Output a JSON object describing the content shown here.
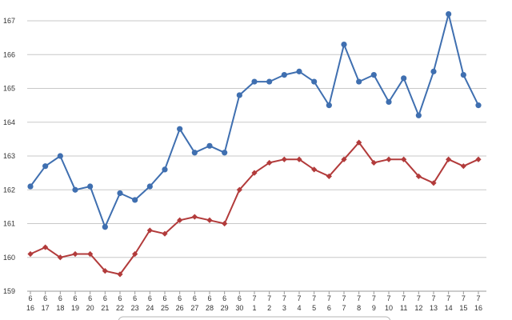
{
  "chart_data": {
    "type": "line",
    "title": "",
    "xlabel": "",
    "ylabel": "",
    "grid": true,
    "ylim": [
      159,
      167
    ],
    "yticks": [
      159,
      160,
      161,
      162,
      163,
      164,
      165,
      166,
      167
    ],
    "categories": [
      [
        "6",
        "16"
      ],
      [
        "6",
        "17"
      ],
      [
        "6",
        "18"
      ],
      [
        "6",
        "19"
      ],
      [
        "6",
        "20"
      ],
      [
        "6",
        "21"
      ],
      [
        "6",
        "22"
      ],
      [
        "6",
        "23"
      ],
      [
        "6",
        "24"
      ],
      [
        "6",
        "25"
      ],
      [
        "6",
        "26"
      ],
      [
        "6",
        "27"
      ],
      [
        "6",
        "28"
      ],
      [
        "6",
        "29"
      ],
      [
        "6",
        "30"
      ],
      [
        "7",
        "1"
      ],
      [
        "7",
        "2"
      ],
      [
        "7",
        "3"
      ],
      [
        "7",
        "4"
      ],
      [
        "7",
        "5"
      ],
      [
        "7",
        "6"
      ],
      [
        "7",
        "7"
      ],
      [
        "7",
        "8"
      ],
      [
        "7",
        "9"
      ],
      [
        "7",
        "10"
      ],
      [
        "7",
        "11"
      ],
      [
        "7",
        "12"
      ],
      [
        "7",
        "13"
      ],
      [
        "7",
        "14"
      ],
      [
        "7",
        "15"
      ],
      [
        "7",
        "16"
      ]
    ],
    "series": [
      {
        "color": "#3f6fb0",
        "marker": "circle",
        "values": [
          162.1,
          162.7,
          163.0,
          162.0,
          162.1,
          160.9,
          161.9,
          161.7,
          162.1,
          162.6,
          163.8,
          163.1,
          163.3,
          163.1,
          164.8,
          165.2,
          165.2,
          165.4,
          165.5,
          165.2,
          164.5,
          166.3,
          165.2,
          165.4,
          164.6,
          165.3,
          164.2,
          165.5,
          167.2,
          165.4,
          164.5
        ]
      },
      {
        "color": "#b23b3b",
        "marker": "diamond",
        "values": [
          160.1,
          160.3,
          160.0,
          160.1,
          160.1,
          159.6,
          159.5,
          160.1,
          160.8,
          160.7,
          161.1,
          161.2,
          161.1,
          161.0,
          162.0,
          162.5,
          162.8,
          162.9,
          162.9,
          162.6,
          162.4,
          162.9,
          163.4,
          162.8,
          162.9,
          162.9,
          162.4,
          162.2,
          162.9,
          162.7,
          162.9
        ]
      }
    ]
  }
}
